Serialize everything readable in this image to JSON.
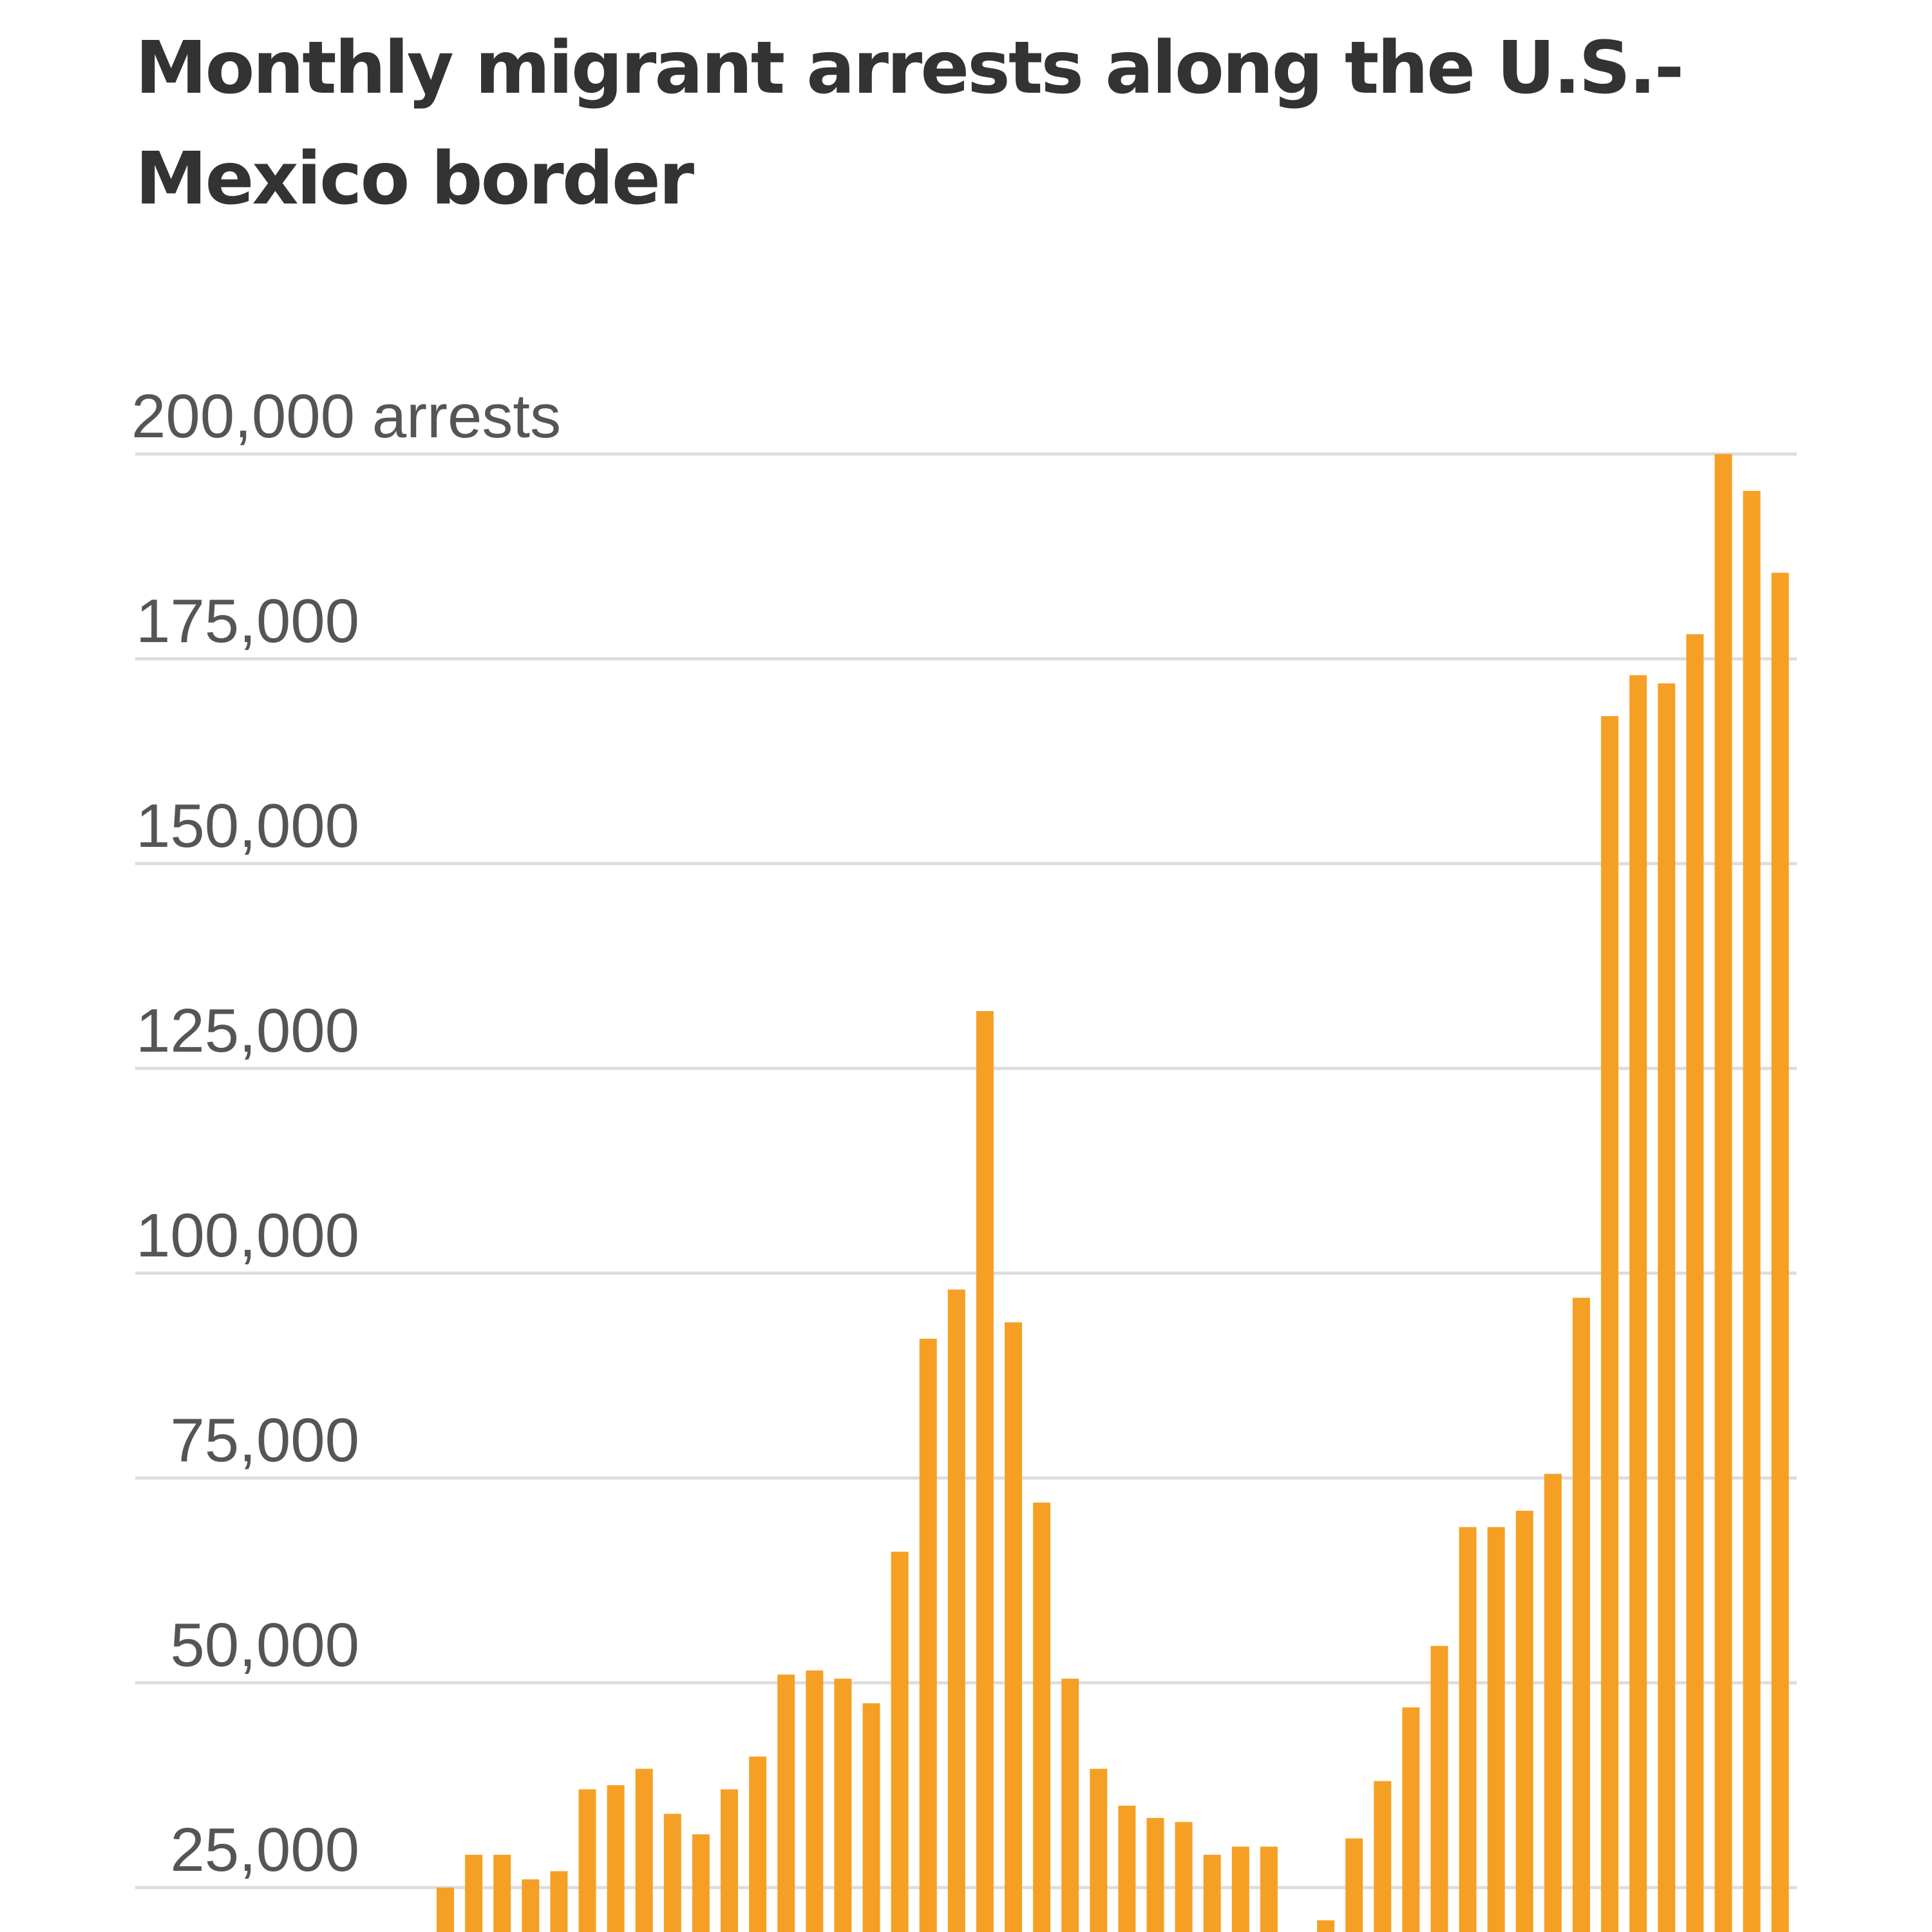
{
  "chart_data": {
    "type": "bar",
    "title": "Monthly migrant arrests along the U.S.-Mexico border",
    "xlabel": "",
    "ylabel": "arrests",
    "ylim": [
      20000,
      200000
    ],
    "grid": true,
    "bar_color": "#f5a025",
    "y_ticks": [
      {
        "value": 200000,
        "label": "200,000",
        "unit": "arrests"
      },
      {
        "value": 175000,
        "label": "175,000"
      },
      {
        "value": 150000,
        "label": "150,000"
      },
      {
        "value": 125000,
        "label": "125,000"
      },
      {
        "value": 100000,
        "label": "100,000"
      },
      {
        "value": 75000,
        "label": "75,000"
      },
      {
        "value": 50000,
        "label": "50,000"
      },
      {
        "value": 25000,
        "label": "25,000"
      }
    ],
    "values": [
      25000,
      29000,
      29000,
      26000,
      27000,
      37000,
      37500,
      39500,
      34000,
      31500,
      37000,
      41000,
      51000,
      51500,
      50500,
      47500,
      66000,
      92000,
      98000,
      132000,
      94000,
      72000,
      50500,
      39500,
      35000,
      33500,
      33000,
      29000,
      30000,
      30000,
      null,
      21000,
      31000,
      38000,
      47000,
      54500,
      69000,
      69000,
      71000,
      75500,
      97000,
      168000,
      173000,
      172000,
      178000,
      200000,
      195500,
      185500
    ]
  }
}
